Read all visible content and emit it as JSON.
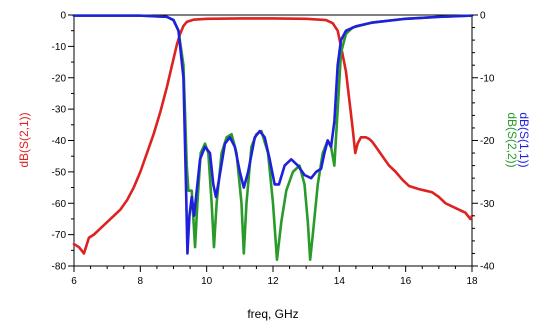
{
  "chart_data": {
    "type": "line",
    "xlabel": "freq, GHz",
    "xlim": [
      6,
      18
    ],
    "x_ticks": [
      6,
      8,
      10,
      12,
      14,
      16,
      18
    ],
    "left_axis": {
      "ylim": [
        -80,
        0
      ],
      "ticks": [
        0,
        -10,
        -20,
        -30,
        -40,
        -50,
        -60,
        -70,
        -80
      ],
      "label": "dB(S(2,1))",
      "color": "#dd2222"
    },
    "right_axis": {
      "ylim": [
        -40,
        0
      ],
      "ticks": [
        0,
        -10,
        -20,
        -30,
        -40
      ],
      "labels": [
        {
          "text": "dB(S(1,1))",
          "color": "#1f1fdd"
        },
        {
          "text": "dB(S(2,2))",
          "color": "#2a9a2a"
        }
      ]
    },
    "grid": false,
    "series": [
      {
        "name": "dB(S(2,1))",
        "axis": "left",
        "color": "#dd2222",
        "points": [
          [
            6.0,
            -73
          ],
          [
            6.15,
            -74
          ],
          [
            6.3,
            -76
          ],
          [
            6.45,
            -71
          ],
          [
            6.6,
            -70
          ],
          [
            6.8,
            -68
          ],
          [
            7.0,
            -66
          ],
          [
            7.2,
            -64
          ],
          [
            7.4,
            -62
          ],
          [
            7.6,
            -59
          ],
          [
            7.8,
            -55
          ],
          [
            8.0,
            -50
          ],
          [
            8.2,
            -44
          ],
          [
            8.4,
            -38
          ],
          [
            8.6,
            -31
          ],
          [
            8.8,
            -23
          ],
          [
            9.0,
            -14
          ],
          [
            9.1,
            -9.5
          ],
          [
            9.2,
            -6
          ],
          [
            9.3,
            -3.5
          ],
          [
            9.4,
            -2.2
          ],
          [
            9.6,
            -1.5
          ],
          [
            10.0,
            -1.2
          ],
          [
            11.0,
            -1.1
          ],
          [
            12.0,
            -1.1
          ],
          [
            13.0,
            -1.2
          ],
          [
            13.6,
            -1.6
          ],
          [
            13.8,
            -2.6
          ],
          [
            13.95,
            -5
          ],
          [
            14.05,
            -10
          ],
          [
            14.2,
            -18
          ],
          [
            14.3,
            -27
          ],
          [
            14.4,
            -36
          ],
          [
            14.48,
            -44
          ],
          [
            14.55,
            -41
          ],
          [
            14.65,
            -39
          ],
          [
            14.8,
            -39
          ],
          [
            14.9,
            -39.5
          ],
          [
            15.0,
            -40.5
          ],
          [
            15.1,
            -42
          ],
          [
            15.3,
            -45
          ],
          [
            15.5,
            -48
          ],
          [
            15.7,
            -50
          ],
          [
            15.9,
            -52.5
          ],
          [
            16.1,
            -54.5
          ],
          [
            16.4,
            -55.5
          ],
          [
            16.6,
            -56
          ],
          [
            16.8,
            -56.5
          ],
          [
            17.0,
            -58
          ],
          [
            17.2,
            -60
          ],
          [
            17.4,
            -61
          ],
          [
            17.6,
            -62
          ],
          [
            17.8,
            -63
          ],
          [
            17.95,
            -65
          ],
          [
            18.0,
            -64
          ]
        ]
      },
      {
        "name": "dB(S(2,2))",
        "axis": "right",
        "color": "#2a9a2a",
        "points": [
          [
            6.0,
            -0.1
          ],
          [
            8.0,
            -0.1
          ],
          [
            8.8,
            -0.3
          ],
          [
            9.0,
            -0.8
          ],
          [
            9.15,
            -2.5
          ],
          [
            9.3,
            -8
          ],
          [
            9.4,
            -24
          ],
          [
            9.45,
            -28
          ],
          [
            9.55,
            -28
          ],
          [
            9.65,
            -37
          ],
          [
            9.72,
            -30
          ],
          [
            9.82,
            -22
          ],
          [
            9.95,
            -20.5
          ],
          [
            10.05,
            -22
          ],
          [
            10.15,
            -30
          ],
          [
            10.22,
            -37
          ],
          [
            10.3,
            -30
          ],
          [
            10.45,
            -22
          ],
          [
            10.6,
            -19.5
          ],
          [
            10.75,
            -19
          ],
          [
            10.9,
            -22
          ],
          [
            11.05,
            -30
          ],
          [
            11.12,
            -38
          ],
          [
            11.2,
            -30
          ],
          [
            11.35,
            -21
          ],
          [
            11.5,
            -19
          ],
          [
            11.65,
            -18.5
          ],
          [
            11.85,
            -22
          ],
          [
            12.0,
            -30
          ],
          [
            12.12,
            -39
          ],
          [
            12.25,
            -33
          ],
          [
            12.4,
            -28
          ],
          [
            12.6,
            -25
          ],
          [
            12.8,
            -24
          ],
          [
            12.95,
            -27
          ],
          [
            13.05,
            -33
          ],
          [
            13.12,
            -39
          ],
          [
            13.2,
            -35
          ],
          [
            13.35,
            -27
          ],
          [
            13.5,
            -22
          ],
          [
            13.65,
            -20
          ],
          [
            13.75,
            -21
          ],
          [
            13.85,
            -24
          ],
          [
            13.95,
            -15
          ],
          [
            14.05,
            -6
          ],
          [
            14.2,
            -3
          ],
          [
            14.4,
            -2
          ],
          [
            15.0,
            -1.2
          ],
          [
            16.0,
            -0.6
          ],
          [
            17.0,
            -0.3
          ],
          [
            18.0,
            -0.1
          ]
        ]
      },
      {
        "name": "dB(S(1,1))",
        "axis": "right",
        "color": "#1f1fdd",
        "points": [
          [
            6.0,
            -0.1
          ],
          [
            8.0,
            -0.1
          ],
          [
            8.8,
            -0.3
          ],
          [
            9.0,
            -0.8
          ],
          [
            9.15,
            -2.5
          ],
          [
            9.3,
            -10
          ],
          [
            9.38,
            -28
          ],
          [
            9.42,
            -38
          ],
          [
            9.48,
            -32
          ],
          [
            9.55,
            -29
          ],
          [
            9.62,
            -32
          ],
          [
            9.7,
            -28
          ],
          [
            9.8,
            -23
          ],
          [
            9.95,
            -21
          ],
          [
            10.1,
            -22
          ],
          [
            10.2,
            -27
          ],
          [
            10.28,
            -29
          ],
          [
            10.38,
            -26
          ],
          [
            10.55,
            -20.5
          ],
          [
            10.7,
            -19.5
          ],
          [
            10.85,
            -21
          ],
          [
            11.0,
            -25
          ],
          [
            11.12,
            -27.5
          ],
          [
            11.25,
            -25
          ],
          [
            11.45,
            -19.5
          ],
          [
            11.6,
            -18.5
          ],
          [
            11.75,
            -19.5
          ],
          [
            11.9,
            -23
          ],
          [
            12.05,
            -27
          ],
          [
            12.18,
            -27
          ],
          [
            12.35,
            -24
          ],
          [
            12.55,
            -23
          ],
          [
            12.75,
            -24
          ],
          [
            12.95,
            -25.5
          ],
          [
            13.15,
            -26
          ],
          [
            13.3,
            -25
          ],
          [
            13.45,
            -24.5
          ],
          [
            13.55,
            -22
          ],
          [
            13.65,
            -20
          ],
          [
            13.75,
            -21
          ],
          [
            13.85,
            -17
          ],
          [
            13.95,
            -8
          ],
          [
            14.05,
            -4
          ],
          [
            14.2,
            -2.5
          ],
          [
            14.5,
            -1.8
          ],
          [
            15.0,
            -1.2
          ],
          [
            16.0,
            -0.6
          ],
          [
            17.0,
            -0.3
          ],
          [
            18.0,
            -0.1
          ]
        ]
      }
    ]
  }
}
